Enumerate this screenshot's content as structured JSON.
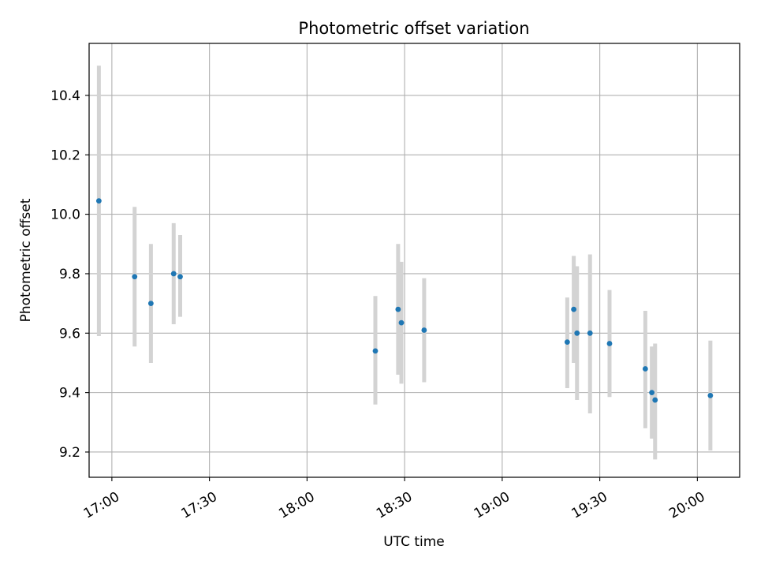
{
  "chart_data": {
    "type": "scatter",
    "title": "Photometric offset variation",
    "xlabel": "UTC time",
    "ylabel": "Photometric offset",
    "x_axis_type": "time",
    "xlim": [
      "16:53",
      "20:13"
    ],
    "ylim": [
      9.115,
      10.575
    ],
    "x_ticks": [
      "17:00",
      "17:30",
      "18:00",
      "18:30",
      "19:00",
      "19:30",
      "20:00"
    ],
    "y_ticks": [
      9.2,
      9.4,
      9.6,
      9.8,
      10.0,
      10.2,
      10.4
    ],
    "y_tick_labels": [
      "9.2",
      "9.4",
      "9.6",
      "9.8",
      "10.0",
      "10.2",
      "10.4"
    ],
    "grid": true,
    "point_color": "#1f77b4",
    "errorbar_color": "#d3d3d3",
    "series": [
      {
        "points": [
          {
            "x": "16:56",
            "y": 10.045,
            "ylo": 9.59,
            "yhi": 10.5
          },
          {
            "x": "17:07",
            "y": 9.79,
            "ylo": 9.555,
            "yhi": 10.025
          },
          {
            "x": "17:12",
            "y": 9.7,
            "ylo": 9.5,
            "yhi": 9.9
          },
          {
            "x": "17:19",
            "y": 9.8,
            "ylo": 9.63,
            "yhi": 9.97
          },
          {
            "x": "17:21",
            "y": 9.79,
            "ylo": 9.655,
            "yhi": 9.93
          },
          {
            "x": "18:21",
            "y": 9.54,
            "ylo": 9.36,
            "yhi": 9.725
          },
          {
            "x": "18:28",
            "y": 9.68,
            "ylo": 9.46,
            "yhi": 9.9
          },
          {
            "x": "18:29",
            "y": 9.635,
            "ylo": 9.43,
            "yhi": 9.84
          },
          {
            "x": "18:36",
            "y": 9.61,
            "ylo": 9.435,
            "yhi": 9.785
          },
          {
            "x": "19:20",
            "y": 9.57,
            "ylo": 9.415,
            "yhi": 9.72
          },
          {
            "x": "19:22",
            "y": 9.68,
            "ylo": 9.5,
            "yhi": 9.86
          },
          {
            "x": "19:23",
            "y": 9.6,
            "ylo": 9.375,
            "yhi": 9.825
          },
          {
            "x": "19:27",
            "y": 9.6,
            "ylo": 9.33,
            "yhi": 9.865
          },
          {
            "x": "19:33",
            "y": 9.565,
            "ylo": 9.385,
            "yhi": 9.745
          },
          {
            "x": "19:44",
            "y": 9.48,
            "ylo": 9.28,
            "yhi": 9.675
          },
          {
            "x": "19:46",
            "y": 9.4,
            "ylo": 9.245,
            "yhi": 9.555
          },
          {
            "x": "19:47",
            "y": 9.375,
            "ylo": 9.175,
            "yhi": 9.565
          },
          {
            "x": "20:04",
            "y": 9.39,
            "ylo": 9.205,
            "yhi": 9.575
          }
        ]
      }
    ]
  }
}
